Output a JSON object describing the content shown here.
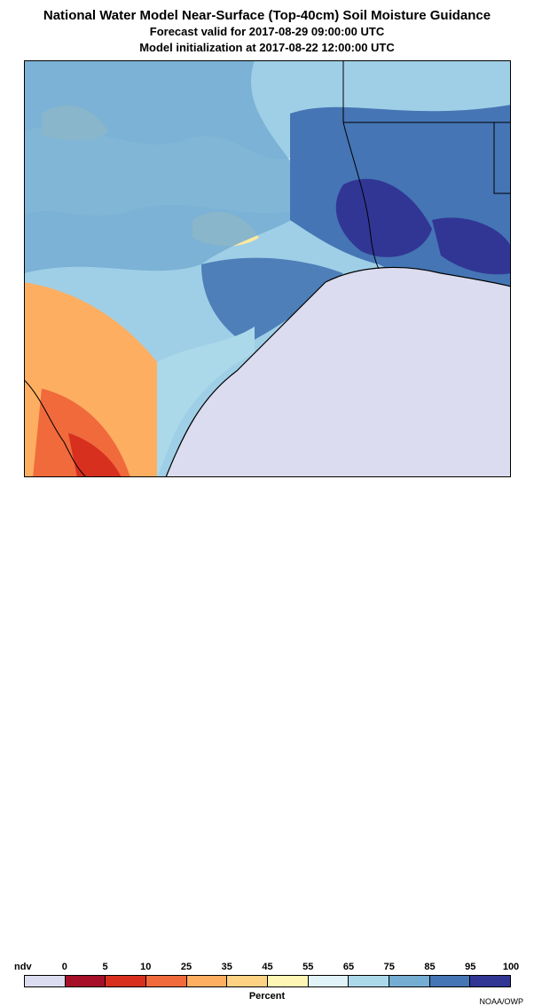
{
  "header": {
    "title": "National Water Model Near-Surface (Top-40cm) Soil Moisture Guidance",
    "forecast_valid": "Forecast valid for 2017-08-29 09:00:00 UTC",
    "init_time": "Model initialization at 2017-08-22 12:00:00 UTC"
  },
  "legend": {
    "ndv_label": "ndv",
    "ticks": [
      "0",
      "5",
      "10",
      "25",
      "35",
      "45",
      "55",
      "65",
      "75",
      "85",
      "95",
      "100"
    ],
    "colors": [
      "#dcdcf0",
      "#a50f28",
      "#d7301f",
      "#f06a3c",
      "#fdae61",
      "#fed283",
      "#fff5b4",
      "#e0f3f8",
      "#abd9e9",
      "#74add1",
      "#4575b4",
      "#313695"
    ],
    "unit": "Percent",
    "credit": "NOAA/OWP"
  },
  "colors": {
    "water": "#dcdcf0",
    "land_base": "#9fcfe6",
    "mid_blue": "#74add1",
    "deep_blue": "#4575b4",
    "darkest": "#313695",
    "dry_orange": "#fdae61",
    "dry_red": "#d7301f",
    "pale_yellow": "#fee8a0",
    "boundary": "#000000"
  }
}
